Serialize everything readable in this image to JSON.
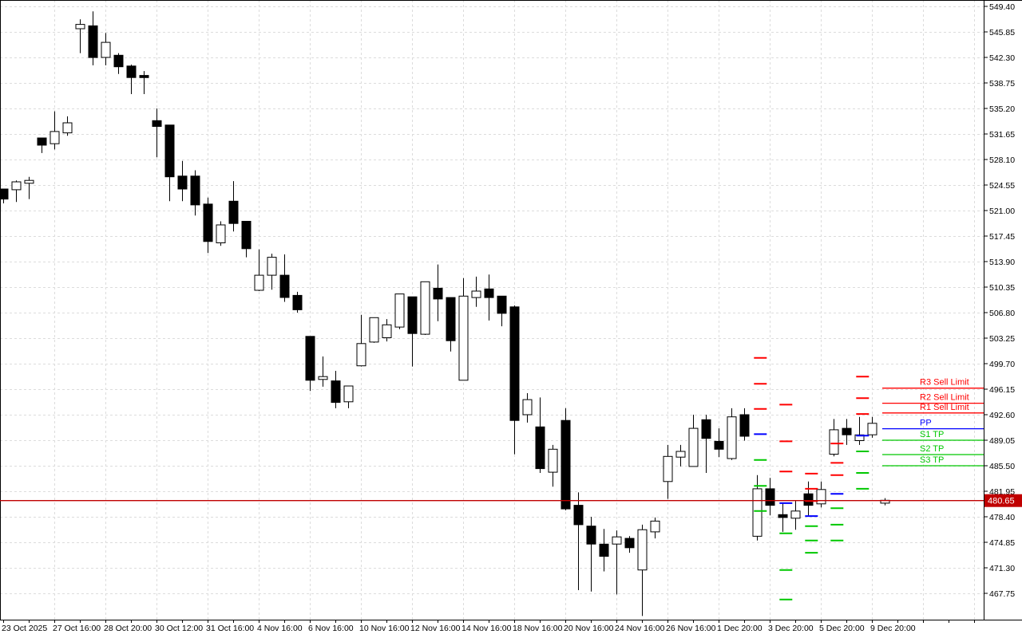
{
  "colors": {
    "background": "#ffffff",
    "grid": "#dcdcdc",
    "frame": "#000000",
    "axis_text": "#000000",
    "bull_fill": "#ffffff",
    "bear_fill": "#000000",
    "candle_outline": "#000000",
    "resistance": "#ff0000",
    "pivot": "#0000ff",
    "support": "#00c800",
    "price_line": "#c00000",
    "price_tag_bg": "#c00000",
    "price_tag_text": "#ffffff"
  },
  "chart_data": {
    "type": "candlestick",
    "title": "",
    "grid": true,
    "y_axis": {
      "side": "right",
      "tick_start": 549.4,
      "tick_step": 3.55,
      "tick_count": 24,
      "ylim_top": 550.29,
      "ylim_bottom": 464.09,
      "tick_labels": [
        "549.40",
        "545.85",
        "542.30",
        "538.75",
        "535.20",
        "531.65",
        "528.10",
        "524.55",
        "521.00",
        "517.45",
        "513.90",
        "510.35",
        "506.80",
        "503.25",
        "499.70",
        "496.15",
        "492.60",
        "489.05",
        "485.50",
        "481.95",
        "478.40",
        "474.85",
        "471.30",
        "467.75"
      ]
    },
    "x_axis": {
      "labels": [
        {
          "candle_index": 0,
          "label": "23 Oct 2025"
        },
        {
          "candle_index": 4,
          "label": "27 Oct 16:00"
        },
        {
          "candle_index": 8,
          "label": "28 Oct 20:00"
        },
        {
          "candle_index": 12,
          "label": "30 Oct 12:00"
        },
        {
          "candle_index": 16,
          "label": "31 Oct 16:00"
        },
        {
          "candle_index": 20,
          "label": "4 Nov 16:00"
        },
        {
          "candle_index": 24,
          "label": "6 Nov 16:00"
        },
        {
          "candle_index": 28,
          "label": "10 Nov 16:00"
        },
        {
          "candle_index": 32,
          "label": "12 Nov 16:00"
        },
        {
          "candle_index": 36,
          "label": "14 Nov 16:00"
        },
        {
          "candle_index": 40,
          "label": "18 Nov 16:00"
        },
        {
          "candle_index": 44,
          "label": "20 Nov 16:00"
        },
        {
          "candle_index": 48,
          "label": "24 Nov 16:00"
        },
        {
          "candle_index": 52,
          "label": "26 Nov 16:00"
        },
        {
          "candle_index": 56,
          "label": "1 Dec 20:00"
        },
        {
          "candle_index": 60,
          "label": "3 Dec 20:00"
        },
        {
          "candle_index": 64,
          "label": "5 Dec 20:00"
        },
        {
          "candle_index": 68,
          "label": "9 Dec 20:00"
        }
      ]
    },
    "candles_format": "[open, high, low, close]",
    "candles": [
      [
        524.0,
        524.0,
        522.0,
        522.6
      ],
      [
        523.9,
        525.2,
        522.2,
        525.0
      ],
      [
        524.8,
        525.7,
        522.6,
        525.2
      ],
      [
        531.1,
        531.1,
        529.0,
        530.1
      ],
      [
        530.3,
        534.8,
        529.5,
        532.0
      ],
      [
        531.8,
        534.1,
        531.4,
        533.2
      ],
      [
        546.3,
        547.6,
        542.9,
        546.9
      ],
      [
        546.7,
        548.7,
        541.2,
        542.3
      ],
      [
        542.3,
        545.7,
        541.2,
        544.4
      ],
      [
        542.6,
        542.9,
        540.0,
        541.0
      ],
      [
        541.1,
        541.3,
        537.2,
        539.5
      ],
      [
        539.8,
        540.4,
        537.2,
        539.5
      ],
      [
        533.5,
        535.2,
        528.4,
        532.7
      ],
      [
        532.9,
        532.9,
        522.3,
        525.7
      ],
      [
        525.8,
        527.9,
        522.3,
        524.0
      ],
      [
        525.8,
        526.6,
        520.3,
        521.8
      ],
      [
        521.9,
        522.8,
        515.1,
        516.7
      ],
      [
        516.5,
        519.5,
        516.1,
        519.0
      ],
      [
        522.3,
        525.1,
        518.1,
        519.2
      ],
      [
        519.5,
        519.5,
        514.5,
        515.7
      ],
      [
        509.9,
        515.6,
        509.8,
        512.0
      ],
      [
        512.0,
        515.0,
        510.0,
        514.5
      ],
      [
        512.0,
        514.9,
        508.3,
        508.9
      ],
      [
        509.2,
        509.7,
        506.8,
        507.2
      ],
      [
        503.5,
        503.5,
        495.9,
        497.4
      ],
      [
        497.5,
        500.7,
        496.5,
        497.9
      ],
      [
        497.3,
        498.7,
        493.5,
        494.3
      ],
      [
        494.4,
        496.6,
        493.5,
        496.6
      ],
      [
        499.4,
        506.5,
        499.3,
        502.5
      ],
      [
        502.7,
        506.1,
        502.6,
        506.1
      ],
      [
        503.3,
        505.9,
        502.8,
        505.1
      ],
      [
        504.8,
        509.4,
        504.5,
        509.4
      ],
      [
        509.0,
        509.0,
        499.3,
        503.9
      ],
      [
        503.8,
        511.1,
        503.7,
        511.1
      ],
      [
        510.2,
        513.5,
        505.6,
        508.7
      ],
      [
        508.9,
        508.9,
        501.4,
        502.9
      ],
      [
        497.4,
        511.6,
        497.4,
        509.1
      ],
      [
        508.9,
        511.8,
        507.6,
        509.8
      ],
      [
        510.1,
        512.1,
        505.7,
        508.9
      ],
      [
        509.1,
        509.1,
        504.9,
        506.7
      ],
      [
        507.6,
        507.8,
        487.1,
        491.8
      ],
      [
        492.6,
        495.6,
        491.5,
        494.7
      ],
      [
        490.9,
        495.0,
        484.5,
        485.1
      ],
      [
        484.6,
        488.4,
        482.6,
        487.8
      ],
      [
        491.8,
        493.5,
        479.3,
        479.5
      ],
      [
        480.0,
        481.8,
        468.2,
        477.3
      ],
      [
        477.1,
        478.4,
        468.0,
        474.6
      ],
      [
        474.6,
        476.7,
        470.8,
        472.9
      ],
      [
        474.6,
        476.5,
        467.6,
        475.6
      ],
      [
        475.4,
        475.7,
        473.4,
        474.1
      ],
      [
        471.0,
        477.3,
        464.6,
        476.6
      ],
      [
        476.3,
        478.3,
        475.4,
        477.8
      ],
      [
        483.3,
        488.4,
        480.9,
        486.8
      ],
      [
        486.7,
        488.4,
        485.4,
        487.5
      ],
      [
        485.4,
        492.6,
        485.4,
        490.7
      ],
      [
        491.9,
        492.6,
        484.5,
        489.3
      ],
      [
        488.9,
        490.7,
        486.7,
        487.8
      ],
      [
        486.5,
        493.5,
        486.3,
        492.3
      ],
      [
        492.6,
        493.5,
        489.0,
        489.6
      ],
      [
        475.7,
        484.2,
        475.1,
        482.3
      ],
      [
        482.3,
        483.8,
        478.6,
        480.0
      ],
      [
        478.7,
        480.4,
        476.3,
        478.3
      ],
      [
        478.2,
        480.6,
        476.6,
        479.2
      ],
      [
        481.6,
        483.3,
        478.4,
        480.0
      ],
      [
        480.2,
        483.3,
        479.7,
        482.2
      ],
      [
        487.1,
        492.0,
        486.8,
        490.5
      ],
      [
        490.7,
        492.0,
        488.4,
        489.8
      ],
      [
        489.0,
        492.3,
        488.4,
        489.8
      ],
      [
        489.8,
        492.3,
        489.4,
        491.4
      ],
      [
        480.3,
        481.0,
        480.0,
        480.7
      ]
    ],
    "current_price": 480.65,
    "current_price_label": "480.65",
    "pivot_lines": [
      {
        "label": "R3 Sell Limit",
        "price": 496.3,
        "kind": "r"
      },
      {
        "label": "R2 Sell Limit",
        "price": 494.2,
        "kind": "r"
      },
      {
        "label": "R1 Sell Limit",
        "price": 492.85,
        "kind": "r"
      },
      {
        "label": "PP",
        "price": 490.65,
        "kind": "p"
      },
      {
        "label": "S1 TP",
        "price": 489.05,
        "kind": "s"
      },
      {
        "label": "S2 TP",
        "price": 487.05,
        "kind": "s"
      },
      {
        "label": "S3 TP",
        "price": 485.5,
        "kind": "s"
      }
    ],
    "historical_pivot_marks": [
      {
        "candle_pos": 59.3,
        "levels": [
          {
            "kind": "r",
            "price": 500.5
          },
          {
            "kind": "r",
            "price": 496.9
          },
          {
            "kind": "r",
            "price": 493.4
          },
          {
            "kind": "p",
            "price": 489.9
          },
          {
            "kind": "s",
            "price": 486.3
          },
          {
            "kind": "s",
            "price": 482.7
          },
          {
            "kind": "s",
            "price": 479.2
          }
        ]
      },
      {
        "candle_pos": 61.3,
        "levels": [
          {
            "kind": "r",
            "price": 494.0
          },
          {
            "kind": "r",
            "price": 488.9
          },
          {
            "kind": "r",
            "price": 484.7
          },
          {
            "kind": "p",
            "price": 480.3
          },
          {
            "kind": "s",
            "price": 476.1
          },
          {
            "kind": "s",
            "price": 471.0
          },
          {
            "kind": "s",
            "price": 466.9
          }
        ]
      },
      {
        "candle_pos": 63.3,
        "levels": [
          {
            "kind": "r",
            "price": 484.4
          },
          {
            "kind": "r",
            "price": 482.3
          },
          {
            "kind": "r",
            "price": 480.6
          },
          {
            "kind": "p",
            "price": 478.5
          },
          {
            "kind": "s",
            "price": 477.1
          },
          {
            "kind": "s",
            "price": 475.1
          },
          {
            "kind": "s",
            "price": 473.4
          }
        ]
      },
      {
        "candle_pos": 65.3,
        "levels": [
          {
            "kind": "r",
            "price": 488.6
          },
          {
            "kind": "r",
            "price": 485.9
          },
          {
            "kind": "r",
            "price": 484.2
          },
          {
            "kind": "p",
            "price": 481.6
          },
          {
            "kind": "s",
            "price": 479.6
          },
          {
            "kind": "s",
            "price": 477.3
          },
          {
            "kind": "s",
            "price": 475.1
          }
        ]
      },
      {
        "candle_pos": 67.3,
        "levels": [
          {
            "kind": "r",
            "price": 497.9
          },
          {
            "kind": "r",
            "price": 494.9
          },
          {
            "kind": "r",
            "price": 492.7
          },
          {
            "kind": "p",
            "price": 489.7
          },
          {
            "kind": "s",
            "price": 487.5
          },
          {
            "kind": "s",
            "price": 484.5
          },
          {
            "kind": "s",
            "price": 482.3
          }
        ]
      }
    ]
  }
}
